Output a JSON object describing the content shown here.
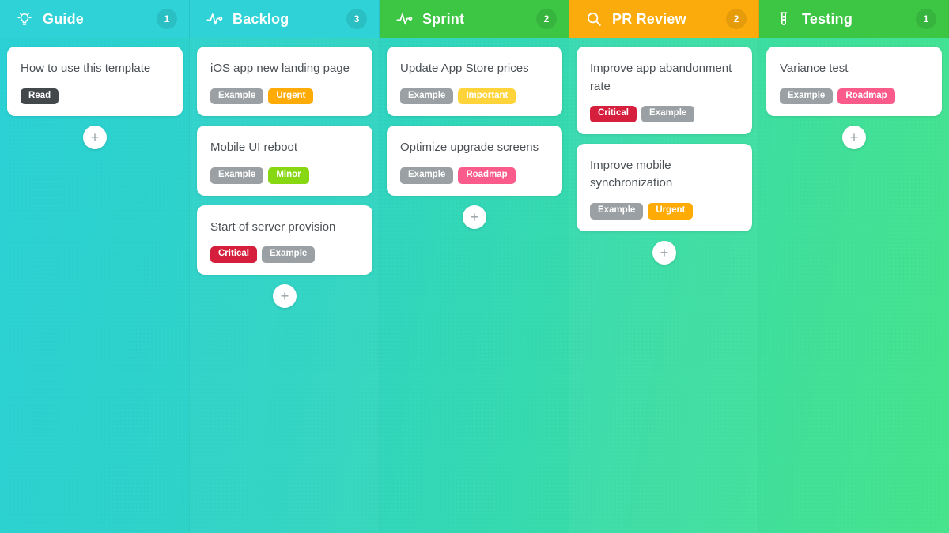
{
  "board": {
    "add_card_label": "+",
    "columns": [
      {
        "title": "Guide",
        "icon": "lightbulb-icon",
        "count": "1",
        "header_color": "#2ed2d7",
        "cards": [
          {
            "title": "How to use this template",
            "tags": [
              {
                "label": "Read",
                "color": "#43484b"
              }
            ]
          }
        ]
      },
      {
        "title": "Backlog",
        "icon": "activity-icon",
        "count": "3",
        "header_color": "#2ed2d7",
        "cards": [
          {
            "title": "iOS app new landing page",
            "tags": [
              {
                "label": "Example",
                "color": "#9aa0a4"
              },
              {
                "label": "Urgent",
                "color": "#ffab05"
              }
            ]
          },
          {
            "title": "Mobile UI reboot",
            "tags": [
              {
                "label": "Example",
                "color": "#9aa0a4"
              },
              {
                "label": "Minor",
                "color": "#87d812"
              }
            ]
          },
          {
            "title": "Start of server provision",
            "tags": [
              {
                "label": "Critical",
                "color": "#d51f3c"
              },
              {
                "label": "Example",
                "color": "#9aa0a4"
              }
            ]
          }
        ]
      },
      {
        "title": "Sprint",
        "icon": "activity-icon",
        "count": "2",
        "header_color": "#3dc644",
        "cards": [
          {
            "title": "Update App Store prices",
            "tags": [
              {
                "label": "Example",
                "color": "#9aa0a4"
              },
              {
                "label": "Important",
                "color": "#ffd43a"
              }
            ]
          },
          {
            "title": "Optimize upgrade screens",
            "tags": [
              {
                "label": "Example",
                "color": "#9aa0a4"
              },
              {
                "label": "Roadmap",
                "color": "#fa5b8b"
              }
            ]
          }
        ]
      },
      {
        "title": "PR Review",
        "icon": "search-icon",
        "count": "2",
        "header_color": "#fcab0c",
        "cards": [
          {
            "title": "Improve app abandonment rate",
            "tags": [
              {
                "label": "Critical",
                "color": "#d51f3c"
              },
              {
                "label": "Example",
                "color": "#9aa0a4"
              }
            ]
          },
          {
            "title": "Improve mobile synchronization",
            "tags": [
              {
                "label": "Example",
                "color": "#9aa0a4"
              },
              {
                "label": "Urgent",
                "color": "#ffab05"
              }
            ]
          }
        ]
      },
      {
        "title": "Testing",
        "icon": "test-tube-icon",
        "count": "1",
        "header_color": "#3dc644",
        "cards": [
          {
            "title": "Variance test",
            "tags": [
              {
                "label": "Example",
                "color": "#9aa0a4"
              },
              {
                "label": "Roadmap",
                "color": "#fa5b8b"
              }
            ]
          }
        ]
      }
    ]
  }
}
